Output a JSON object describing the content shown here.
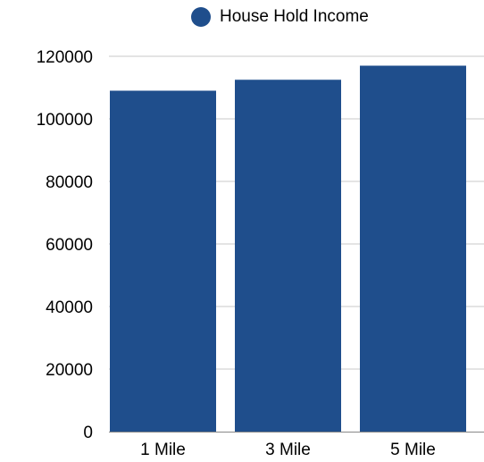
{
  "chart_data": {
    "type": "bar",
    "categories": [
      "1 Mile",
      "3 Mile",
      "5 Mile"
    ],
    "series": [
      {
        "name": "House Hold Income",
        "values": [
          109000,
          112500,
          117000
        ],
        "color": "#1f4e8c"
      }
    ],
    "ylim": [
      0,
      120000
    ],
    "yticks": [
      0,
      20000,
      40000,
      60000,
      80000,
      100000,
      120000
    ],
    "grid": true,
    "legend_position": "top-center",
    "title": "",
    "xlabel": "",
    "ylabel": ""
  },
  "colors": {
    "bar": "#1f4e8c",
    "grid": "#c8c8c8",
    "axis": "#888888"
  }
}
